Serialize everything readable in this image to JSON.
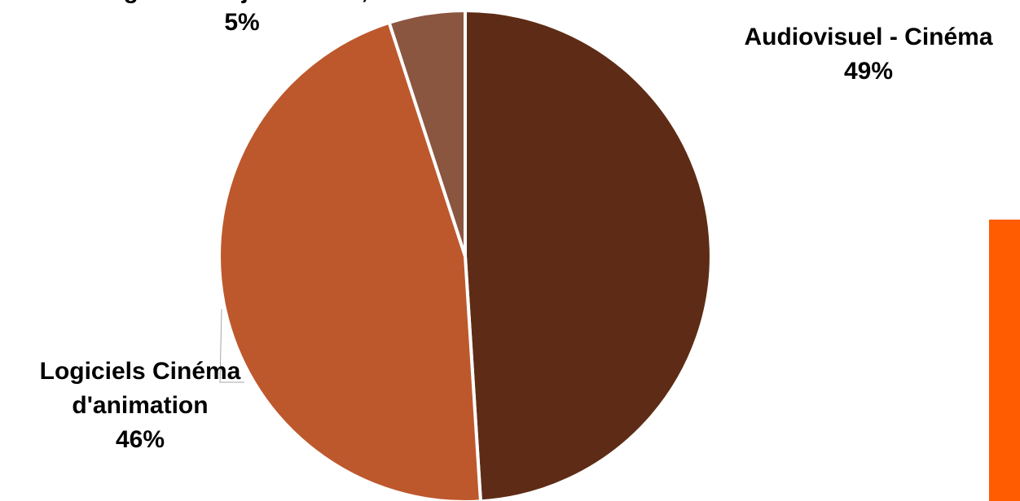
{
  "chart_data": {
    "type": "pie",
    "title": "",
    "slices": [
      {
        "name": "Audiovisuel - Cinéma",
        "value": 49,
        "label": "49%",
        "color": "#5e2c16"
      },
      {
        "name": "Logiciels Cinéma d'animation",
        "value": 46,
        "label": "46%",
        "color": "#bd582d"
      },
      {
        "name": "Logiciels de jeux vidéo, ...",
        "value": 5,
        "label": "5%",
        "color": "#8a5640"
      }
    ],
    "start_angle_deg": 0,
    "direction": "clockwise"
  },
  "decor": {
    "side_bar_color": "#ff5b00"
  }
}
